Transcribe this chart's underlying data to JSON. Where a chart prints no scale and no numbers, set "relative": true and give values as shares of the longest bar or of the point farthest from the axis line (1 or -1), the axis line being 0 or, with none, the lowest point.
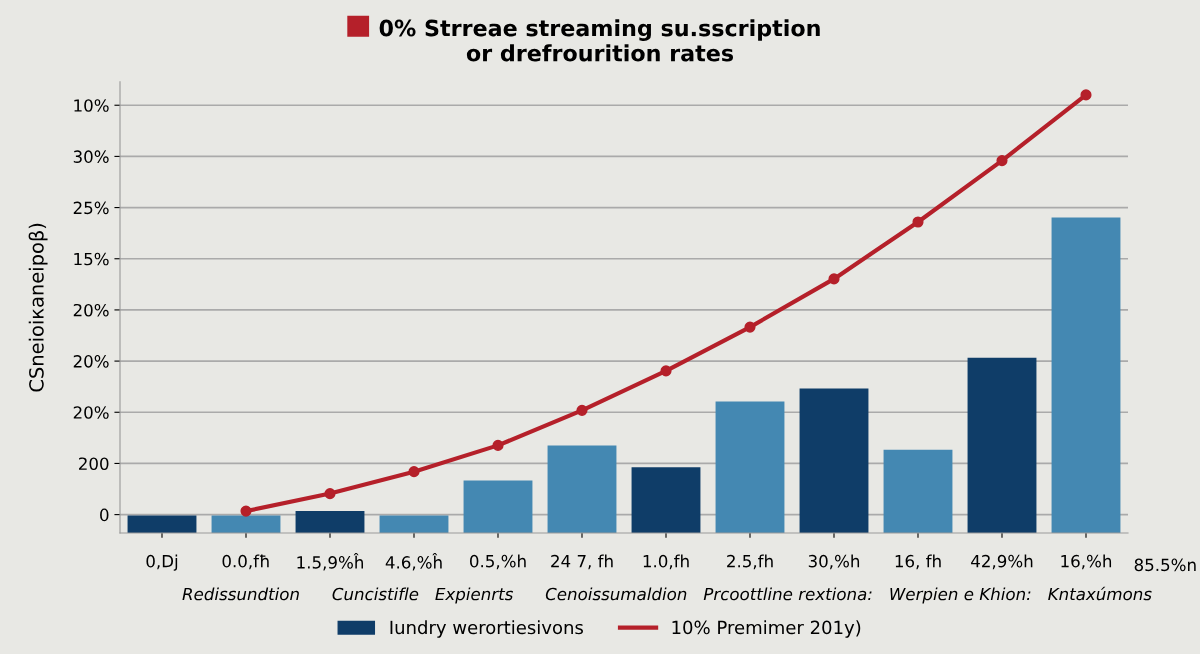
{
  "chart_data": {
    "type": "bar",
    "title": "0% Strreae streaming su.sscription\nor drefrourition rates",
    "ylabel": "CSneioiкaneipoβ)",
    "categories": [
      "0,Dj",
      "0.0,fħ",
      "1.5,9%ĥ",
      "4.6,%ĥ",
      "0.5,%h",
      "24 7, fh",
      "1.0,fh",
      "2.5,fh",
      "30,%h",
      "16, fh",
      "42,9%h",
      "16,%h"
    ],
    "relative": true,
    "series": [
      {
        "name": "Iundry werortiesivons",
        "colors": [
          "#0f3d68",
          "#4488b2",
          "#0f3d68",
          "#4488b2",
          "#4488b2",
          "#4488b2",
          "#0f3d68",
          "#4488b2",
          "#0f3d68",
          "#4488b2",
          "#0f3d68",
          "#4488b2"
        ],
        "values": [
          0.04,
          0.04,
          0.05,
          0.04,
          0.12,
          0.2,
          0.15,
          0.3,
          0.33,
          0.19,
          0.4,
          0.72
        ]
      },
      {
        "name": "10% Premimer 201y)",
        "type": "line",
        "color": "#b5202a",
        "values": [
          null,
          0.05,
          0.09,
          0.14,
          0.2,
          0.28,
          0.37,
          0.47,
          0.58,
          0.71,
          0.85,
          1.0
        ]
      }
    ],
    "grid": "y",
    "marker": "circle",
    "legend": "bottom",
    "annotations": [
      "0",
      "200",
      "20%",
      "20%",
      "20%",
      "15%",
      "25%",
      "30%",
      "10%",
      "85.5%n",
      "Redissundtion      Cuncistifle   Expienrts      Cenoissumaldion   Prcoottline rextiona:   Werpien e Khion:   Kntaxúmons"
    ]
  }
}
